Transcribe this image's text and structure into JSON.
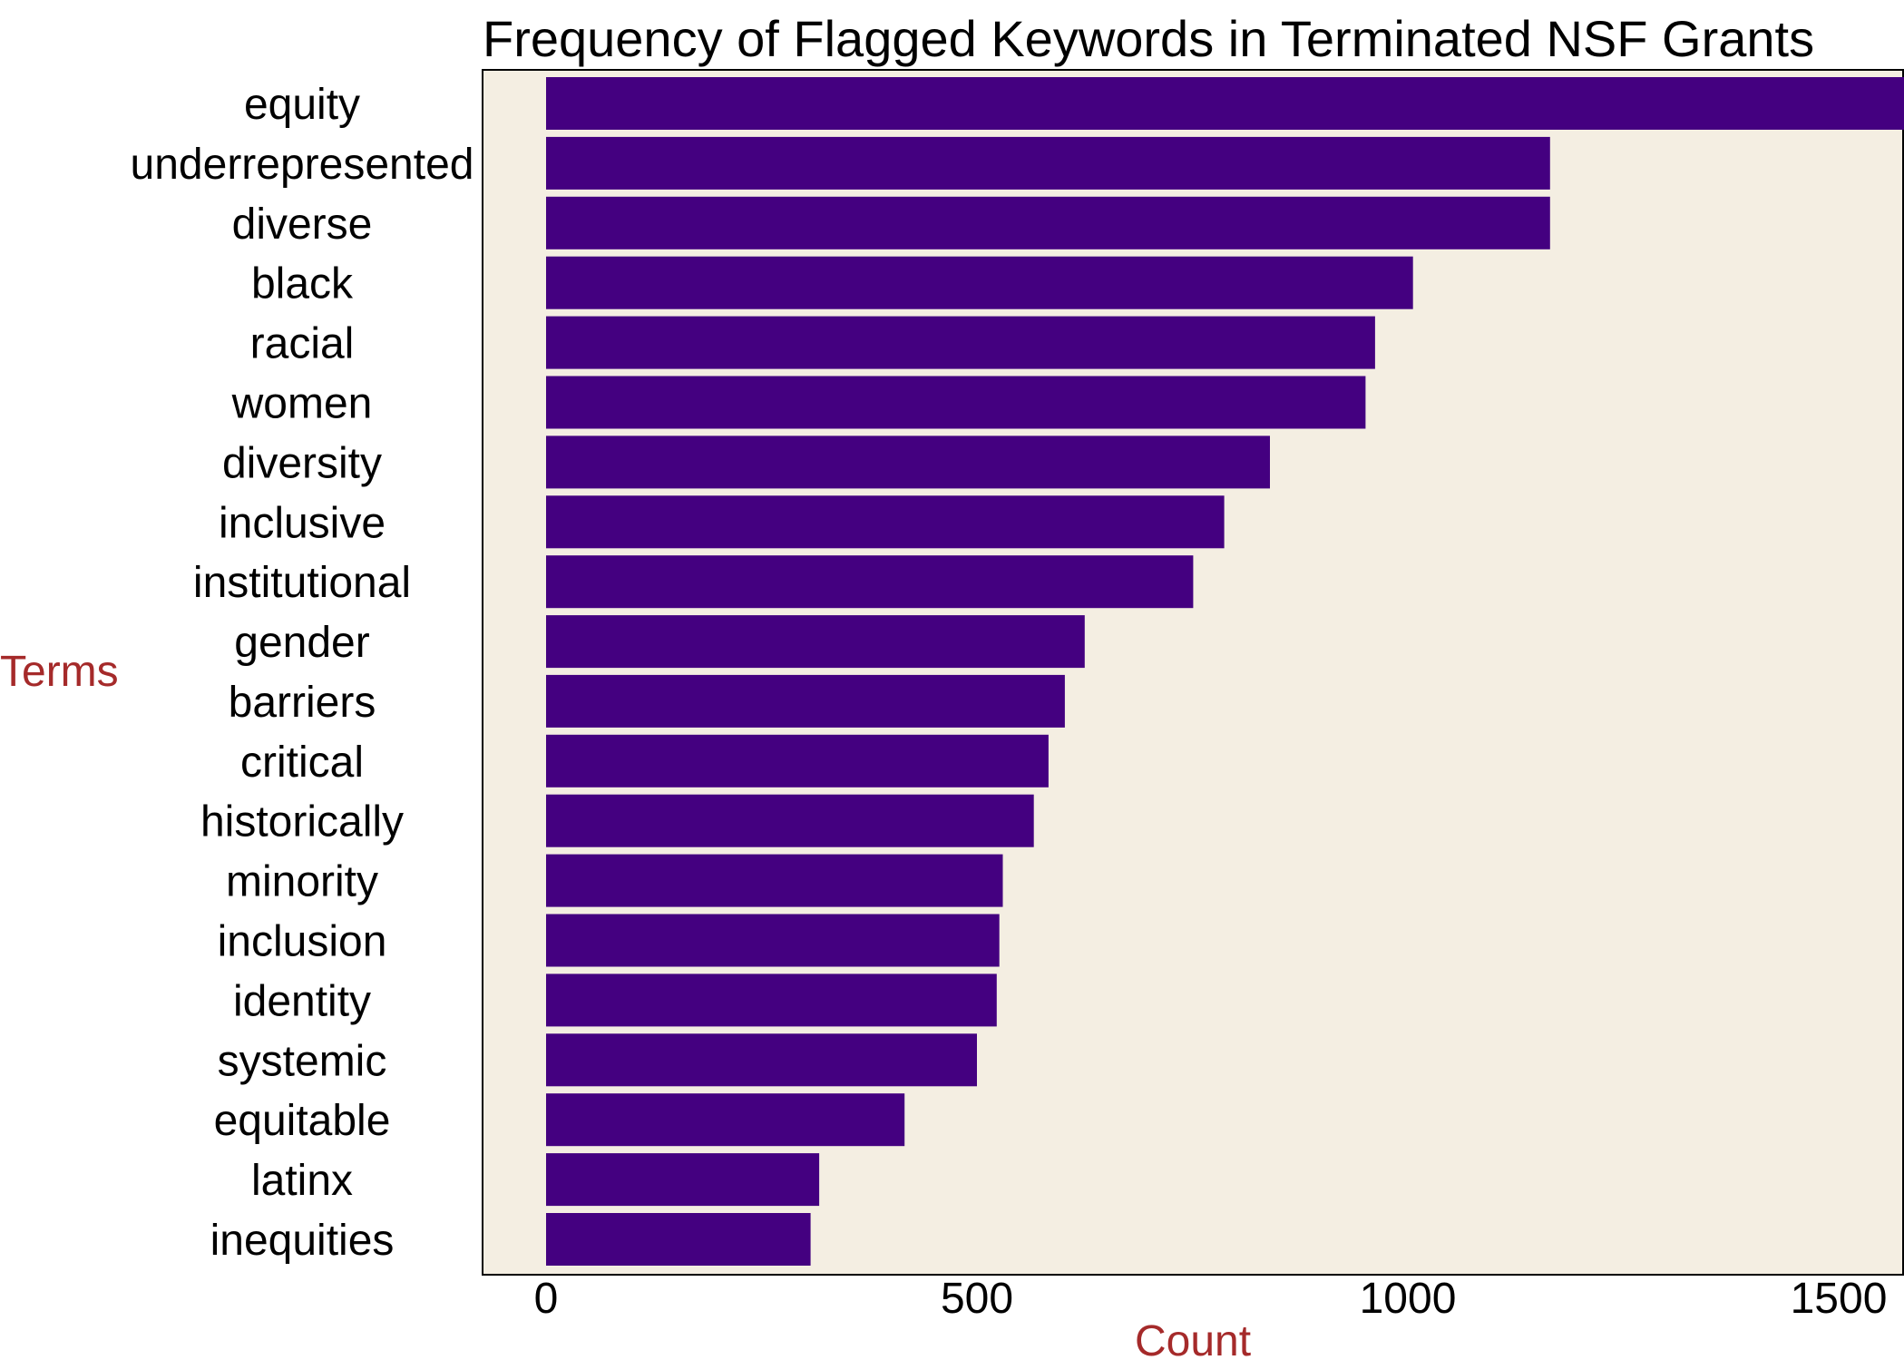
{
  "chart_data": {
    "type": "bar",
    "orientation": "horizontal",
    "title": "Frequency of Flagged Keywords in Terminated NSF Grants",
    "xlabel": "Count",
    "ylabel": "Terms",
    "categories": [
      "equity",
      "underrepresented",
      "diverse",
      "black",
      "racial",
      "women",
      "diversity",
      "inclusive",
      "institutional",
      "gender",
      "barriers",
      "critical",
      "historically",
      "minority",
      "inclusion",
      "identity",
      "systemic",
      "equitable",
      "latinx",
      "inequities"
    ],
    "values": [
      1705,
      1165,
      1165,
      1006,
      962,
      951,
      840,
      787,
      751,
      625,
      602,
      583,
      566,
      530,
      526,
      523,
      500,
      416,
      317,
      307
    ],
    "xlim": [
      -85,
      1785
    ],
    "xticks": [
      0,
      500,
      1000,
      1500
    ],
    "grid": false,
    "legend": "none",
    "colors": {
      "bar": "#440080",
      "panel": "#f4eee2",
      "axis_title": "#a52a2a"
    }
  }
}
